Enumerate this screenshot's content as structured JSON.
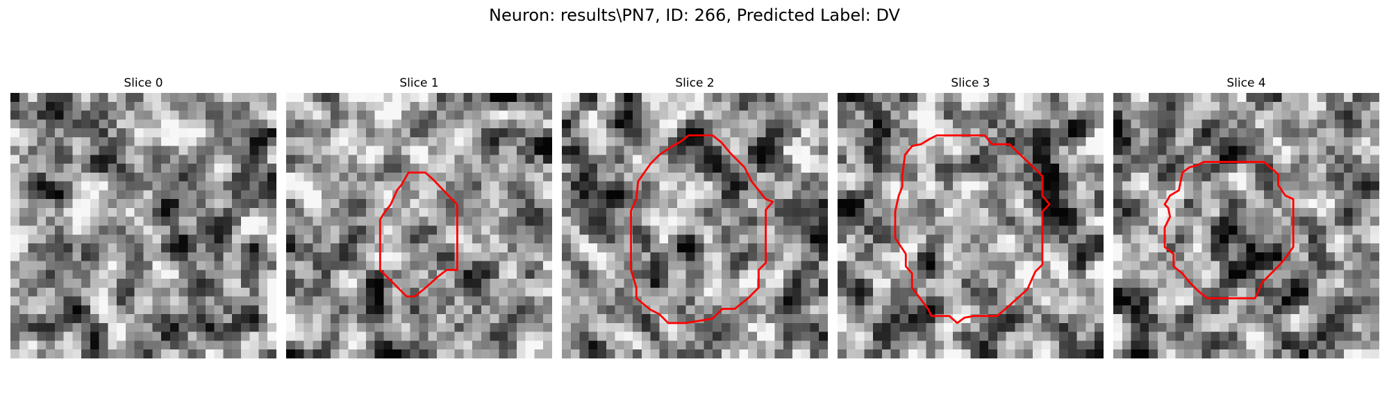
{
  "figure": {
    "title": "Neuron: results\\PN7, ID: 266, Predicted Label: DV"
  },
  "panels": [
    {
      "title": "Slice 0",
      "seed": 11,
      "contour": false
    },
    {
      "title": "Slice 1",
      "seed": 23,
      "contour": true
    },
    {
      "title": "Slice 2",
      "seed": 37,
      "contour": true
    },
    {
      "title": "Slice 3",
      "seed": 41,
      "contour": true
    },
    {
      "title": "Slice 4",
      "seed": 59,
      "contour": true
    }
  ],
  "colors": {
    "contour": "#ff0000",
    "background": "#ffffff",
    "text": "#000000"
  },
  "colormap": "gray"
}
